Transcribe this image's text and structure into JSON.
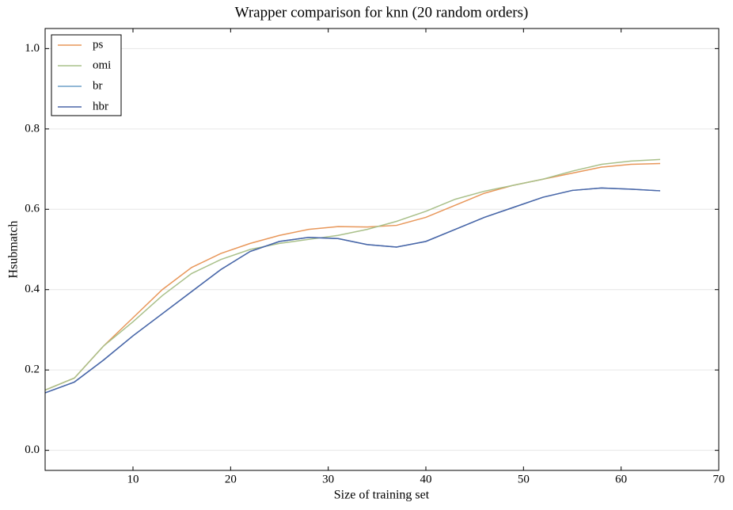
{
  "chart_data": {
    "type": "line",
    "title": "Wrapper comparison for knn (20 random orders)",
    "x_label": "Size of training set",
    "y_label": "Hsubmatch",
    "x": [
      1,
      4,
      7,
      10,
      13,
      16,
      19,
      22,
      25,
      28,
      31,
      34,
      37,
      40,
      43,
      46,
      49,
      52,
      55,
      58,
      61,
      64
    ],
    "series": [
      {
        "name": "ps",
        "color": "#e8975a",
        "values": [
          0.15,
          0.18,
          0.26,
          0.33,
          0.4,
          0.455,
          0.49,
          0.515,
          0.535,
          0.55,
          0.557,
          0.556,
          0.56,
          0.58,
          0.61,
          0.64,
          0.66,
          0.675,
          0.69,
          0.705,
          0.712,
          0.714
        ]
      },
      {
        "name": "omi",
        "color": "#a9c08a",
        "values": [
          0.15,
          0.18,
          0.26,
          0.32,
          0.385,
          0.44,
          0.475,
          0.5,
          0.515,
          0.525,
          0.535,
          0.55,
          0.57,
          0.595,
          0.625,
          0.645,
          0.66,
          0.675,
          0.695,
          0.712,
          0.72,
          0.724
        ]
      },
      {
        "name": "br",
        "color": "#6fa0c8",
        "values": [
          0.143,
          0.17,
          0.225,
          0.285,
          0.34,
          0.395,
          0.45,
          0.495,
          0.52,
          0.53,
          0.527,
          0.512,
          0.506,
          0.52,
          0.55,
          0.58,
          0.605,
          0.63,
          0.647,
          0.653,
          0.65,
          0.646
        ]
      },
      {
        "name": "hbr",
        "color": "#4a66a8",
        "values": [
          0.143,
          0.17,
          0.225,
          0.285,
          0.34,
          0.395,
          0.45,
          0.495,
          0.52,
          0.53,
          0.527,
          0.512,
          0.506,
          0.52,
          0.55,
          0.58,
          0.605,
          0.63,
          0.647,
          0.653,
          0.65,
          0.646
        ]
      }
    ],
    "xlim": [
      1,
      70
    ],
    "xticks": [
      10,
      20,
      30,
      40,
      50,
      60,
      70
    ],
    "ylim": [
      -0.05,
      1.05
    ],
    "yticks": [
      {
        "value": 0,
        "label": "0.0"
      },
      0.2,
      0.4,
      0.6,
      0.8,
      {
        "value": 1,
        "label": "1.0"
      }
    ],
    "grid": true,
    "legend": "upper-left"
  }
}
